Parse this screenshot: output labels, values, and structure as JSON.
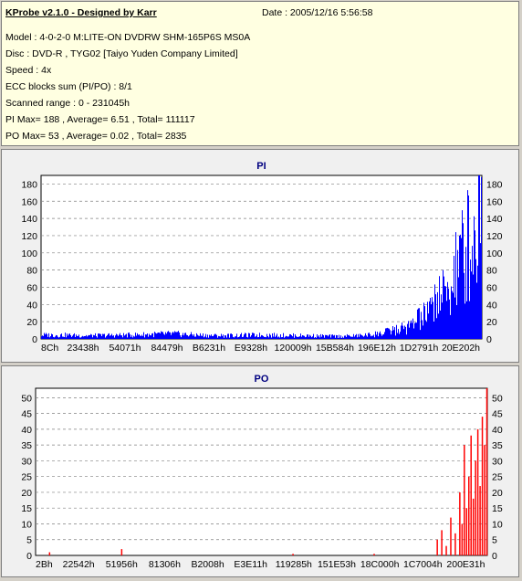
{
  "info": {
    "title": "KProbe v2.1.0 - Designed by Karr",
    "date": "Date : 2005/12/16 5:56:58",
    "lines": [
      "Model : 4-0-2-0 M:LITE-ON DVDRW SHM-165P6S MS0A",
      "Disc : DVD-R , TYG02 [Taiyo Yuden Company Limited]",
      "Speed : 4x",
      "ECC blocks sum (PI/PO) : 8/1",
      "Scanned range : 0 - 231045h",
      "PI Max= 188 , Average= 6.51 , Total= 111117",
      "PO Max= 53 , Average= 0.02 , Total= 2835"
    ]
  },
  "colors": {
    "pi_bars": "#0000ff",
    "po_bars": "#ff0000",
    "title_text": "#000080",
    "plot_bg": "#ffffff",
    "panel_bg": "#f0f0f0"
  },
  "chart_data": [
    {
      "type": "bar",
      "title": "PI",
      "ylim": [
        0,
        190
      ],
      "yticks": [
        0,
        20,
        40,
        60,
        80,
        100,
        120,
        140,
        160,
        180
      ],
      "xticks": [
        "8Ch",
        "23438h",
        "54071h",
        "84479h",
        "B6231h",
        "E9328h",
        "120009h",
        "15B584h",
        "196E12h",
        "1D2791h",
        "20E202h"
      ],
      "grid": true,
      "profile_x": [
        0,
        0.05,
        0.1,
        0.2,
        0.3,
        0.35,
        0.4,
        0.5,
        0.6,
        0.68,
        0.72,
        0.76,
        0.8,
        0.84,
        0.88,
        0.92,
        0.95,
        0.97,
        0.985,
        1.0
      ],
      "profile_y": [
        6,
        6,
        5,
        6,
        8,
        6,
        5,
        6,
        5,
        4,
        5,
        7,
        12,
        20,
        40,
        70,
        110,
        140,
        160,
        188
      ]
    },
    {
      "type": "bar",
      "title": "PO",
      "ylim": [
        0,
        53
      ],
      "yticks": [
        0,
        5,
        10,
        15,
        20,
        25,
        30,
        35,
        40,
        45,
        50
      ],
      "xticks": [
        "2Bh",
        "22542h",
        "51956h",
        "81306h",
        "B2008h",
        "E3E11h",
        "119285h",
        "151E53h",
        "18C000h",
        "1C7004h",
        "200E31h"
      ],
      "grid": true,
      "spikes": [
        {
          "x": 0.03,
          "y": 1
        },
        {
          "x": 0.19,
          "y": 2
        },
        {
          "x": 0.57,
          "y": 0.5
        },
        {
          "x": 0.75,
          "y": 0.5
        },
        {
          "x": 0.89,
          "y": 5
        },
        {
          "x": 0.9,
          "y": 8
        },
        {
          "x": 0.91,
          "y": 3
        },
        {
          "x": 0.92,
          "y": 12
        },
        {
          "x": 0.93,
          "y": 7
        },
        {
          "x": 0.94,
          "y": 20
        },
        {
          "x": 0.945,
          "y": 10
        },
        {
          "x": 0.95,
          "y": 35
        },
        {
          "x": 0.955,
          "y": 15
        },
        {
          "x": 0.96,
          "y": 25
        },
        {
          "x": 0.965,
          "y": 38
        },
        {
          "x": 0.97,
          "y": 18
        },
        {
          "x": 0.975,
          "y": 30
        },
        {
          "x": 0.98,
          "y": 40
        },
        {
          "x": 0.985,
          "y": 22
        },
        {
          "x": 0.99,
          "y": 44
        },
        {
          "x": 0.995,
          "y": 35
        },
        {
          "x": 1.0,
          "y": 53
        }
      ]
    }
  ]
}
